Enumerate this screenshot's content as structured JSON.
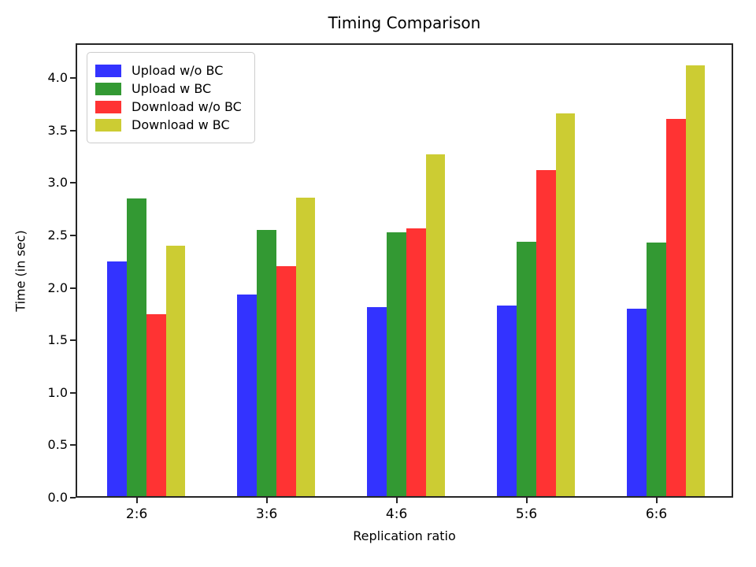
{
  "chart_data": {
    "type": "bar",
    "title": "Timing Comparison",
    "xlabel": "Replication ratio",
    "ylabel": "Time (in sec)",
    "categories": [
      "2:6",
      "3:6",
      "4:6",
      "5:6",
      "6:6"
    ],
    "series": [
      {
        "name": "Upload w/o BC",
        "color": "#3333ff",
        "values": [
          2.25,
          1.94,
          1.82,
          1.83,
          1.8
        ]
      },
      {
        "name": "Upload w BC",
        "color": "#339933",
        "values": [
          2.85,
          2.55,
          2.53,
          2.44,
          2.43
        ]
      },
      {
        "name": "Download w/o BC",
        "color": "#ff3333",
        "values": [
          1.75,
          2.21,
          2.57,
          3.12,
          3.61
        ]
      },
      {
        "name": "Download w BC",
        "color": "#cccc33",
        "values": [
          2.4,
          2.86,
          3.27,
          3.66,
          4.12
        ]
      }
    ],
    "ylim": [
      0,
      4.33
    ],
    "yticks": [
      0.0,
      0.5,
      1.0,
      1.5,
      2.0,
      2.5,
      3.0,
      3.5,
      4.0
    ],
    "legend_position": "upper left",
    "grid": false
  }
}
